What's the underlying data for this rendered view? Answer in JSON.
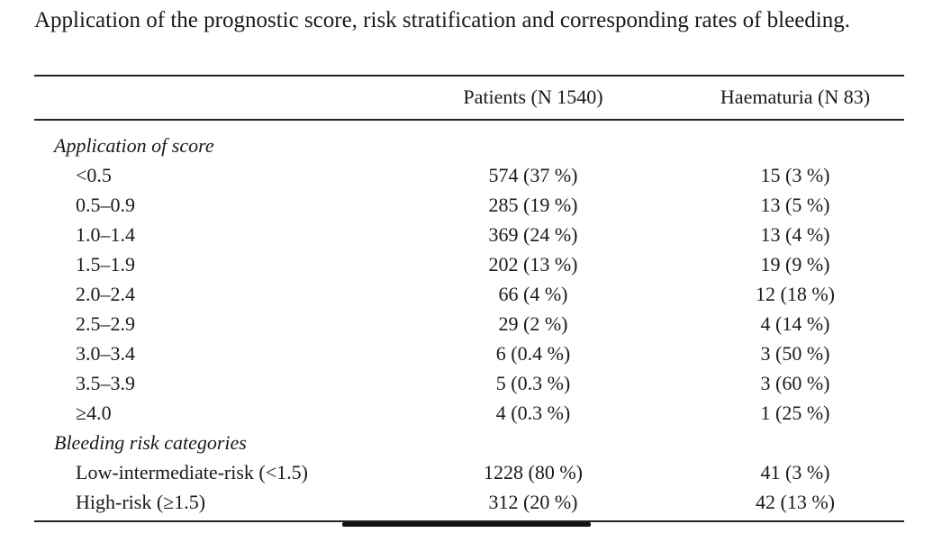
{
  "caption": "Application of the prognostic score, risk stratification and corresponding rates of bleeding.",
  "headers": {
    "col0": "",
    "patients": "Patients (N 1540)",
    "haematuria": "Haematuria (N 83)"
  },
  "sections": [
    {
      "title": "Application of score",
      "rows": [
        {
          "label": "<0.5",
          "patients": "574 (37 %)",
          "haematuria": "15 (3 %)"
        },
        {
          "label": "0.5–0.9",
          "patients": "285 (19 %)",
          "haematuria": "13 (5 %)"
        },
        {
          "label": "1.0–1.4",
          "patients": "369 (24 %)",
          "haematuria": "13 (4 %)"
        },
        {
          "label": "1.5–1.9",
          "patients": "202 (13 %)",
          "haematuria": "19 (9 %)"
        },
        {
          "label": "2.0–2.4",
          "patients": "66 (4 %)",
          "haematuria": "12 (18 %)"
        },
        {
          "label": "2.5–2.9",
          "patients": "29 (2 %)",
          "haematuria": "4 (14 %)"
        },
        {
          "label": "3.0–3.4",
          "patients": "6 (0.4 %)",
          "haematuria": "3 (50 %)"
        },
        {
          "label": "3.5–3.9",
          "patients": "5 (0.3 %)",
          "haematuria": "3 (60 %)"
        },
        {
          "label": "≥4.0",
          "patients": "4 (0.3 %)",
          "haematuria": "1 (25 %)"
        }
      ]
    },
    {
      "title": "Bleeding risk categories",
      "rows": [
        {
          "label": "Low-intermediate-risk (<1.5)",
          "patients": "1228 (80 %)",
          "haematuria": "41 (3 %)"
        },
        {
          "label": "High-risk (≥1.5)",
          "patients": "312 (20 %)",
          "haematuria": "42 (13 %)"
        }
      ]
    }
  ]
}
